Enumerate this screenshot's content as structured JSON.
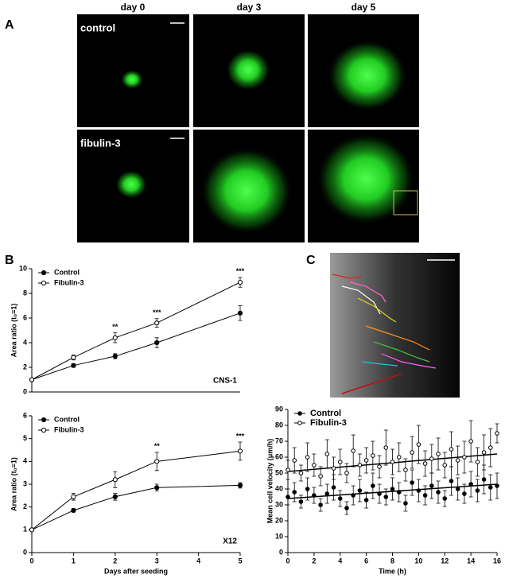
{
  "panel_labels": [
    "A",
    "B",
    "C"
  ],
  "figure_a": {
    "columns": [
      "day 0",
      "day 3",
      "day 5"
    ],
    "rows": [
      "control",
      "fibulin-3"
    ]
  },
  "chart_data": [
    {
      "type": "line",
      "ylabel": "Area ratio (t₀=1)",
      "label": "CNS-1",
      "x": [
        0,
        1,
        2,
        3,
        5
      ],
      "xlim": [
        0,
        5
      ],
      "ylim": [
        0,
        10
      ],
      "yticks": [
        0,
        2,
        4,
        6,
        8,
        10
      ],
      "series": [
        {
          "name": "Control",
          "marker": "filled",
          "color": "#000000",
          "values": [
            1,
            2.15,
            2.9,
            4.0,
            6.4
          ],
          "errors": [
            0.05,
            0.15,
            0.2,
            0.4,
            0.6
          ]
        },
        {
          "name": "Fibulin-3",
          "marker": "open",
          "color": "#000000",
          "values": [
            1,
            2.8,
            4.4,
            5.6,
            8.9
          ],
          "errors": [
            0.05,
            0.2,
            0.4,
            0.35,
            0.4
          ]
        }
      ],
      "annotations": [
        {
          "x": 2,
          "text": "**"
        },
        {
          "x": 3,
          "text": "***"
        },
        {
          "x": 5,
          "text": "***"
        }
      ]
    },
    {
      "type": "line",
      "ylabel": "Area ratio (t₀=1)",
      "label": "X12",
      "xlabel": "Days after seeding",
      "x": [
        0,
        1,
        2,
        3,
        5
      ],
      "xlim": [
        0,
        5
      ],
      "xticks": [
        0,
        1,
        2,
        3,
        4,
        5
      ],
      "ylim": [
        0,
        6
      ],
      "yticks": [
        0,
        1,
        2,
        3,
        4,
        5,
        6
      ],
      "series": [
        {
          "name": "Control",
          "marker": "filled",
          "color": "#000000",
          "values": [
            1,
            1.85,
            2.45,
            2.85,
            2.95
          ],
          "errors": [
            0.05,
            0.08,
            0.15,
            0.15,
            0.12
          ]
        },
        {
          "name": "Fibulin-3",
          "marker": "open",
          "color": "#000000",
          "values": [
            1,
            2.45,
            3.2,
            4.0,
            4.45
          ],
          "errors": [
            0.05,
            0.15,
            0.35,
            0.4,
            0.4
          ]
        }
      ],
      "annotations": [
        {
          "x": 3,
          "text": "**"
        },
        {
          "x": 5,
          "text": "***"
        }
      ]
    },
    {
      "type": "scatter",
      "ylabel": "Mean cell velocity (μm/h)",
      "xlabel": "Time (h)",
      "x": [
        0,
        0.5,
        1,
        1.5,
        2,
        2.5,
        3,
        3.5,
        4,
        4.5,
        5,
        5.5,
        6,
        6.5,
        7,
        7.5,
        8,
        8.5,
        9,
        9.5,
        10,
        10.5,
        11,
        11.5,
        12,
        12.5,
        13,
        13.5,
        14,
        14.5,
        15,
        15.5,
        16
      ],
      "xlim": [
        0,
        16
      ],
      "xticks": [
        0,
        2,
        4,
        6,
        8,
        10,
        12,
        14,
        16
      ],
      "ylim": [
        0,
        90
      ],
      "yticks": [
        0,
        10,
        20,
        30,
        40,
        50,
        60,
        70,
        80,
        90
      ],
      "series": [
        {
          "name": "Control",
          "marker": "filled",
          "color": "#000000",
          "values": [
            35,
            38,
            32,
            40,
            36,
            30,
            37,
            41,
            34,
            28,
            36,
            39,
            33,
            42,
            37,
            35,
            40,
            38,
            31,
            44,
            39,
            36,
            42,
            38,
            34,
            45,
            40,
            37,
            43,
            39,
            46,
            41,
            42
          ],
          "errors": [
            5,
            6,
            4,
            7,
            5,
            4,
            6,
            8,
            5,
            4,
            6,
            7,
            5,
            8,
            6,
            5,
            7,
            6,
            5,
            8,
            7,
            6,
            8,
            7,
            5,
            9,
            7,
            6,
            8,
            7,
            9,
            8,
            8
          ]
        },
        {
          "name": "Fibulin-3",
          "marker": "open",
          "color": "#000000",
          "values": [
            52,
            58,
            50,
            60,
            55,
            48,
            62,
            53,
            57,
            50,
            64,
            55,
            58,
            61,
            54,
            66,
            57,
            60,
            52,
            63,
            68,
            56,
            59,
            62,
            55,
            65,
            58,
            60,
            70,
            57,
            63,
            66,
            75
          ],
          "errors": [
            6,
            8,
            5,
            9,
            7,
            6,
            9,
            7,
            8,
            6,
            10,
            7,
            8,
            9,
            7,
            11,
            8,
            9,
            7,
            10,
            12,
            8,
            9,
            10,
            8,
            11,
            9,
            10,
            13,
            9,
            11,
            12,
            6
          ]
        }
      ],
      "trend_lines": [
        {
          "x": [
            0,
            16
          ],
          "values": [
            34,
            43
          ]
        },
        {
          "x": [
            0,
            16
          ],
          "values": [
            51,
            62
          ]
        }
      ]
    }
  ]
}
